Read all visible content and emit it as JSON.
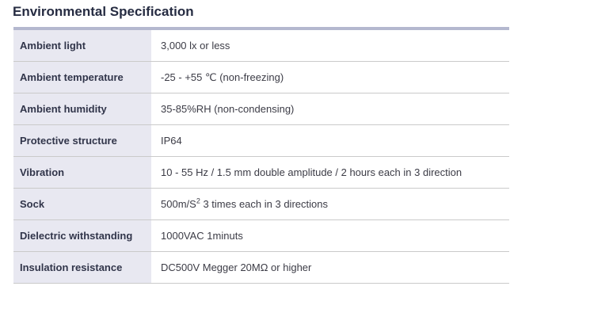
{
  "page": {
    "title": "Environmental Specification"
  },
  "colors": {
    "table_top_border": "#b4b8cf",
    "row_divider": "#cacaca",
    "label_column_bg": "#e8e8f1",
    "title_text": "#262c42",
    "label_text": "#31354a",
    "value_text": "#3c3c46"
  },
  "table": {
    "rows": [
      {
        "label": "Ambient light",
        "value": "3,000 lx or less"
      },
      {
        "label": "Ambient temperature",
        "value": "-25 - +55 ℃ (non-freezing)"
      },
      {
        "label": "Ambient humidity",
        "value": "35-85%RH (non-condensing)"
      },
      {
        "label": "Protective structure",
        "value": "IP64"
      },
      {
        "label": "Vibration",
        "value": "10 - 55 Hz / 1.5 mm double amplitude / 2 hours each in 3 direction"
      },
      {
        "label": "Sock",
        "value_pre": "500m/S",
        "value_sup": "2",
        "value_post": " 3 times each in 3 directions"
      },
      {
        "label": "Dielectric withstanding",
        "value": "1000VAC 1minuts"
      },
      {
        "label": "Insulation resistance",
        "value": "DC500V Megger 20MΩ or higher"
      }
    ]
  }
}
